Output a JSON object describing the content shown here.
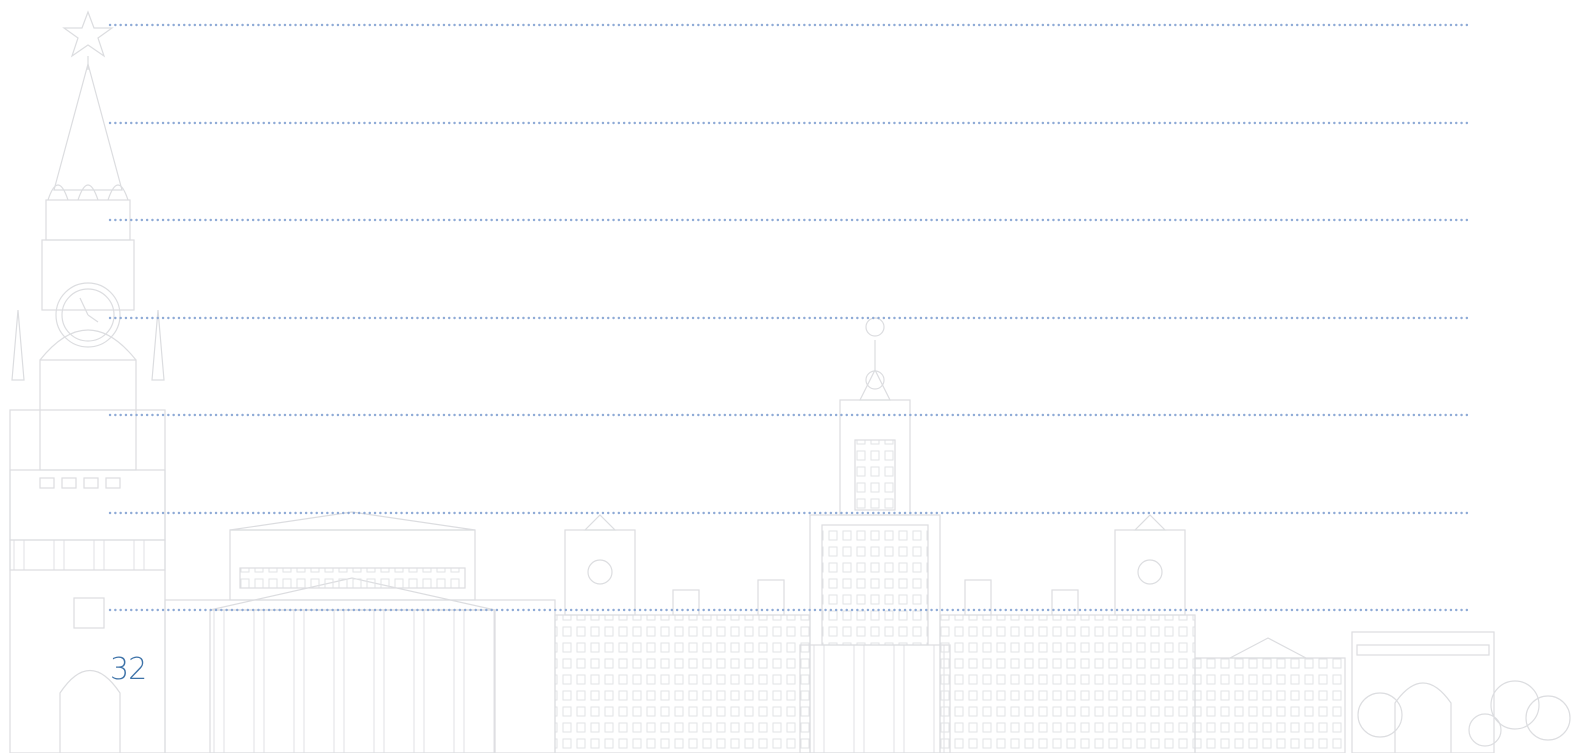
{
  "page_number": "32"
}
